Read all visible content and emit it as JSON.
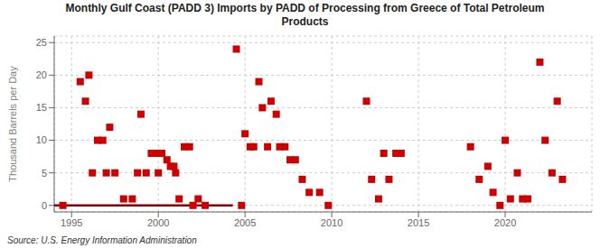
{
  "chart_data": {
    "type": "scatter",
    "title": "Monthly Gulf Coast (PADD 3) Imports by PADD of Processing from Greece of Total Petroleum\nProducts",
    "ylabel": "Thousand Barrels per Day",
    "annotation": "Source: U.S. Energy Information Administration",
    "xlim": [
      1994,
      2025
    ],
    "ylim": [
      -1,
      26
    ],
    "xticks": [
      1995,
      2000,
      2005,
      2010,
      2015,
      2020
    ],
    "yticks": [
      0,
      5,
      10,
      15,
      20,
      25
    ],
    "grid": true,
    "series": [
      {
        "type": "line",
        "color": "#8b0000",
        "x": [
          1994,
          2004.3
        ],
        "values": [
          0,
          0
        ]
      },
      {
        "type": "scatter",
        "color": "#cc0000",
        "marker": "square",
        "x": [
          1994.5,
          1995.5,
          1995.8,
          1996.0,
          1996.2,
          1996.5,
          1996.8,
          1997.0,
          1997.2,
          1997.5,
          1998.0,
          1998.5,
          1998.8,
          1999.0,
          1999.3,
          1999.6,
          1999.9,
          2000.0,
          2000.2,
          2000.5,
          2000.7,
          2000.9,
          2001.0,
          2001.2,
          2001.5,
          2001.8,
          2002.0,
          2002.3,
          2002.7,
          2004.5,
          2004.8,
          2005.0,
          2005.3,
          2005.5,
          2005.8,
          2006.0,
          2006.3,
          2006.5,
          2006.8,
          2007.0,
          2007.3,
          2007.6,
          2007.9,
          2008.3,
          2008.7,
          2009.3,
          2009.8,
          2012.0,
          2012.3,
          2012.7,
          2013.0,
          2013.3,
          2013.7,
          2014.0,
          2018.0,
          2018.5,
          2019.0,
          2019.3,
          2019.7,
          2020.0,
          2020.3,
          2020.7,
          2021.0,
          2021.3,
          2022.0,
          2022.3,
          2022.7,
          2023.0,
          2023.3
        ],
        "values": [
          0,
          19,
          16,
          20,
          5,
          10,
          10,
          5,
          12,
          5,
          1,
          1,
          5,
          14,
          5,
          8,
          8,
          5,
          8,
          7,
          6,
          6,
          5,
          1,
          9,
          9,
          0,
          1,
          0,
          24,
          0,
          11,
          9,
          9,
          19,
          15,
          9,
          16,
          14,
          9,
          9,
          7,
          7,
          4,
          2,
          2,
          0,
          16,
          4,
          1,
          8,
          4,
          8,
          8,
          9,
          4,
          6,
          2,
          0,
          10,
          1,
          5,
          1,
          1,
          22,
          10,
          5,
          16,
          4
        ]
      }
    ]
  }
}
